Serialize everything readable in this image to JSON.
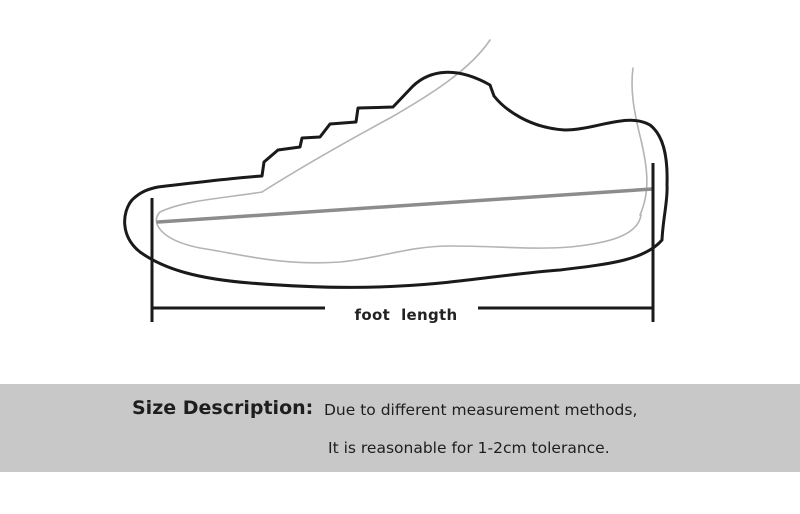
{
  "diagram": {
    "dimension_label": "foot  length"
  },
  "size_note": {
    "title": "Size Description:",
    "line1": "Due to different measurement methods,",
    "line2": "It is reasonable for 1-2cm tolerance."
  },
  "colors": {
    "band": "#c8c8c8",
    "shoe_outline": "#1a1a1a",
    "foot_outline": "#b4b4b4",
    "length_line": "#8c8c8c"
  }
}
